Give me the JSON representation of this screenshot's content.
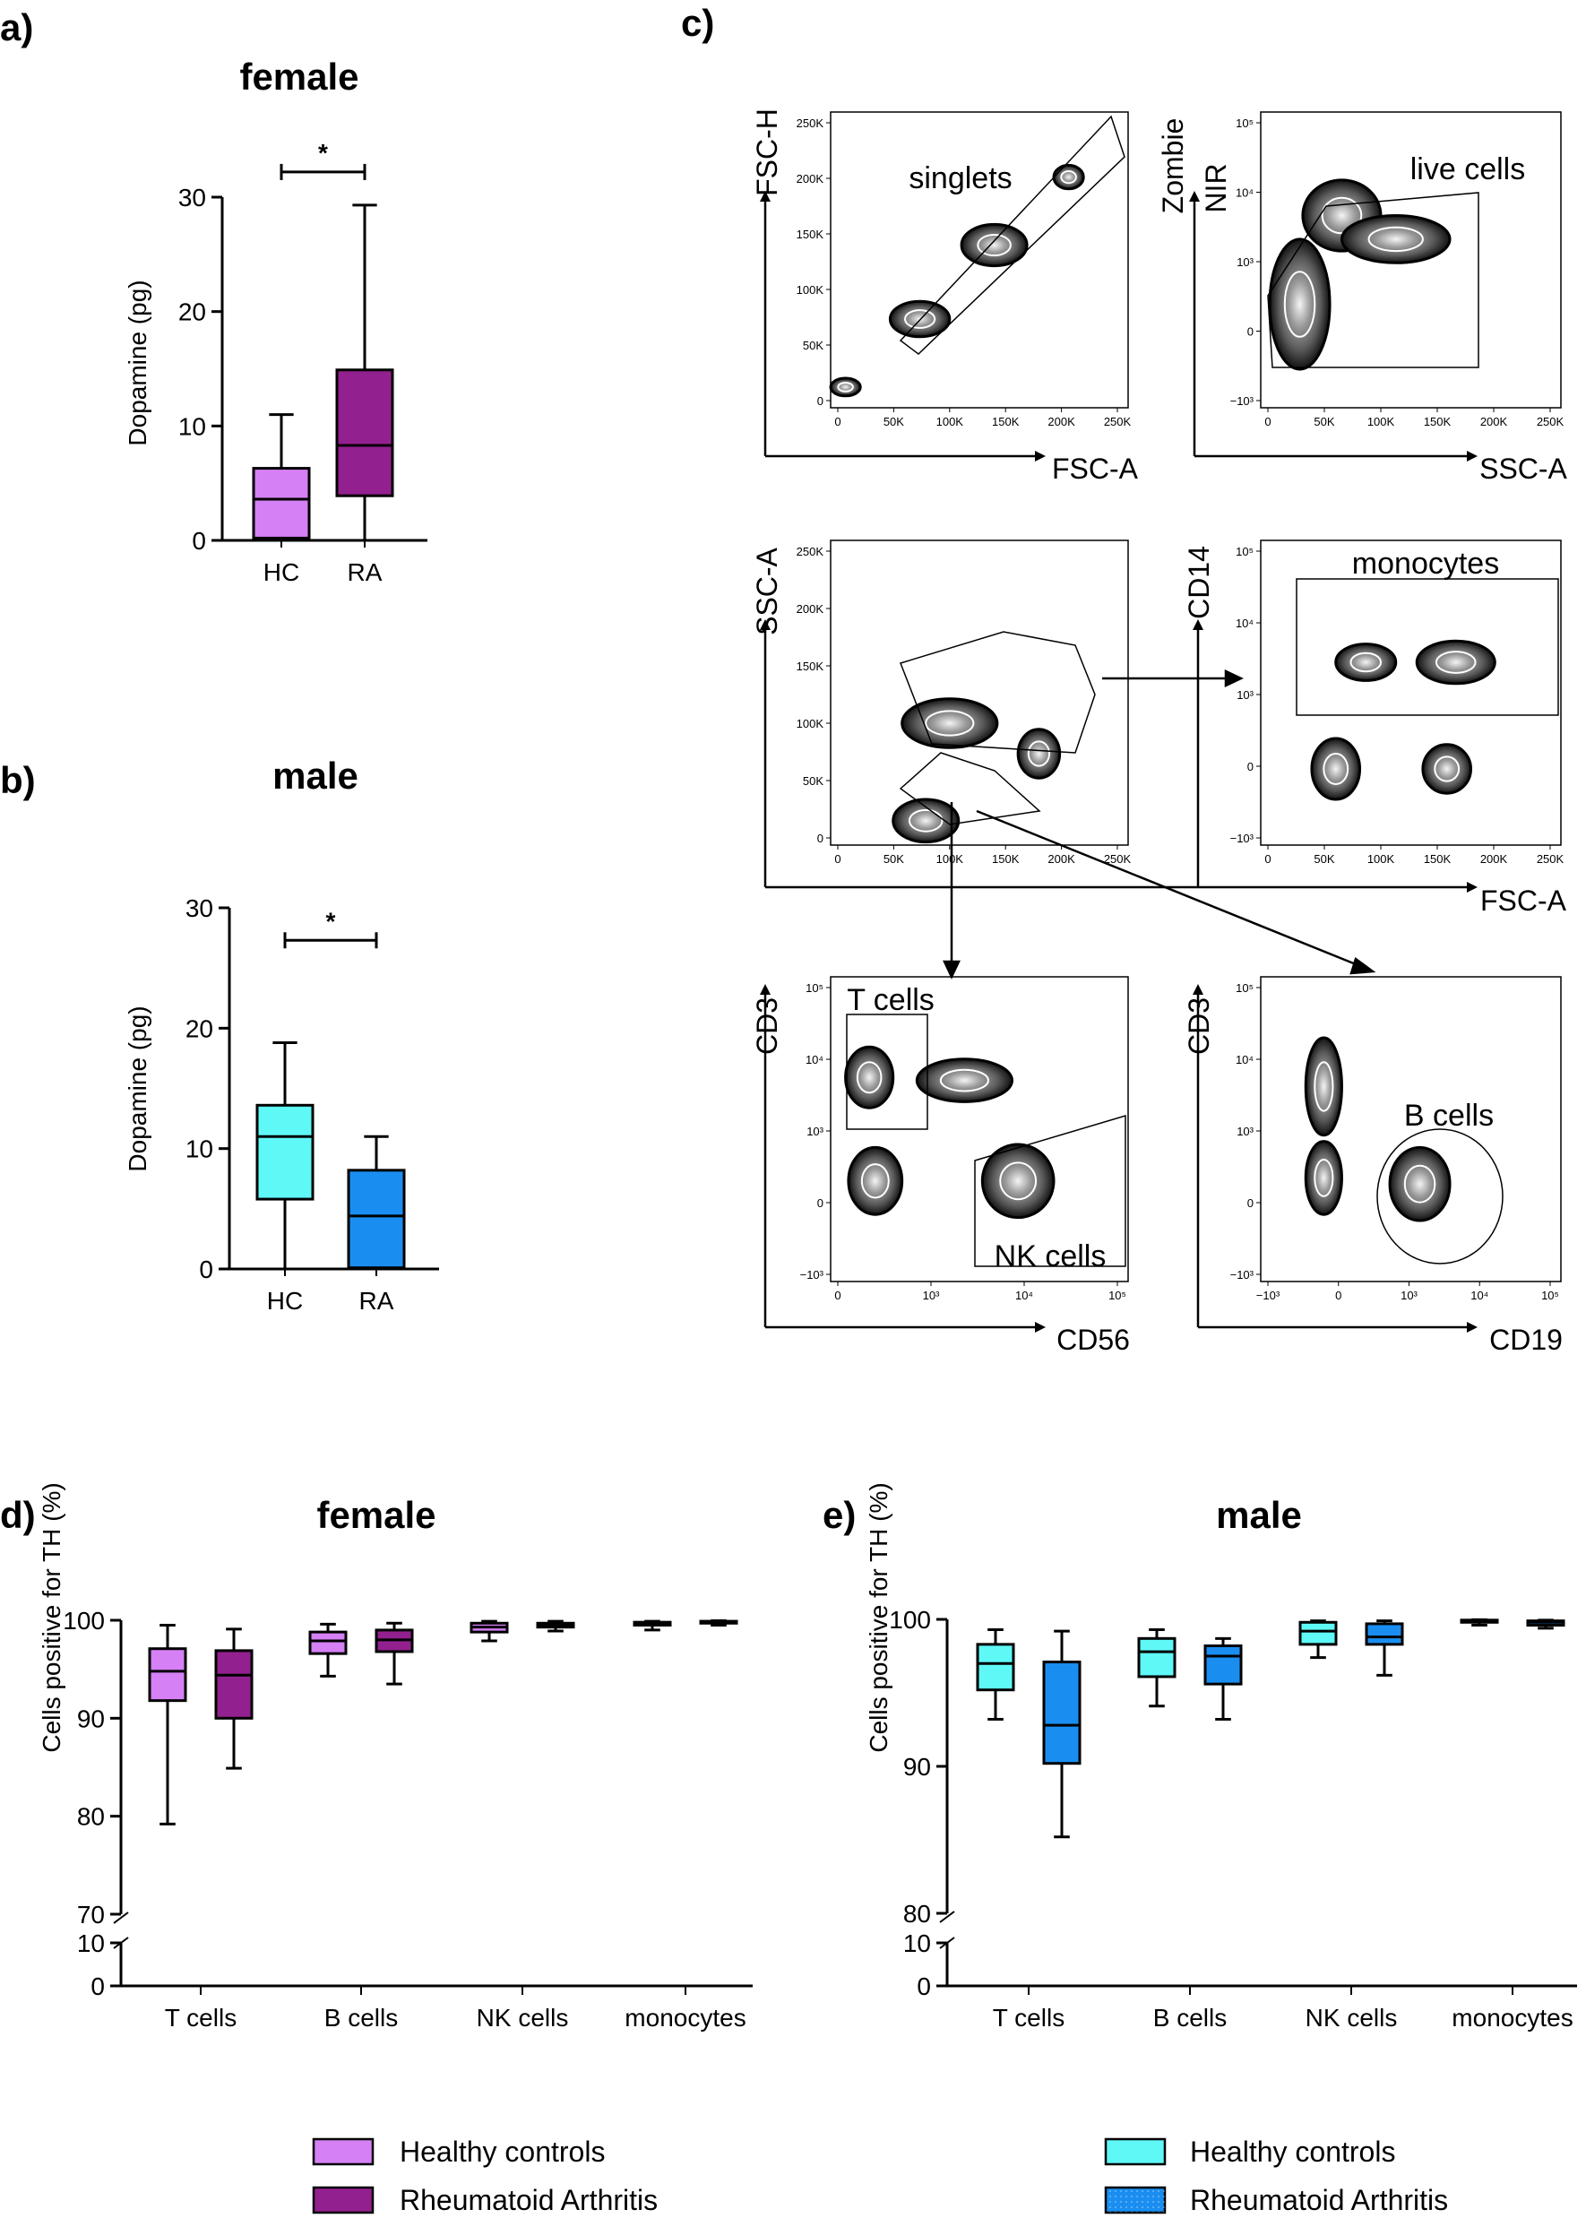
{
  "colors": {
    "female_hc": "#d580f5",
    "female_ra": "#93208f",
    "male_hc": "#5ef8f7",
    "male_ra": "#1a8ef0",
    "axis": "#000000"
  },
  "chart_data": [
    {
      "id": "a",
      "panel_letter": "a)",
      "type": "box",
      "title": "female",
      "ylabel": "Dopamine (pg)",
      "ylim": [
        0,
        30
      ],
      "yticks": [
        "0",
        "10",
        "20",
        "30"
      ],
      "categories": [
        "HC",
        "RA"
      ],
      "series": [
        {
          "category": "HC",
          "min": 0,
          "q1": 0.2,
          "median": 3.6,
          "q3": 6.3,
          "max": 11.0
        },
        {
          "category": "RA",
          "min": 0,
          "q1": 3.9,
          "median": 8.3,
          "q3": 14.9,
          "max": 29.3
        }
      ],
      "significance": {
        "from": "HC",
        "to": "RA",
        "label": "*",
        "y": 32.2
      }
    },
    {
      "id": "b",
      "panel_letter": "b)",
      "type": "box",
      "title": "male",
      "ylabel": "Dopamine (pg)",
      "ylim": [
        0,
        30
      ],
      "yticks": [
        "0",
        "10",
        "20",
        "30"
      ],
      "categories": [
        "HC",
        "RA"
      ],
      "series": [
        {
          "category": "HC",
          "min": 0,
          "q1": 5.8,
          "median": 11.0,
          "q3": 13.6,
          "max": 18.8
        },
        {
          "category": "RA",
          "min": 0,
          "q1": 0.1,
          "median": 4.4,
          "q3": 8.2,
          "max": 11.0
        }
      ],
      "significance": {
        "from": "HC",
        "to": "RA",
        "label": "*",
        "y": 27.3
      }
    },
    {
      "id": "c",
      "panel_letter": "c)",
      "type": "gating-plots",
      "plots": [
        {
          "x_axis": "FSC-A",
          "y_axis": "FSC-H",
          "gate": "singlets",
          "xticks": [
            "0",
            "50K",
            "100K",
            "150K",
            "200K",
            "250K"
          ],
          "yticks": [
            "0",
            "50K",
            "100K",
            "150K",
            "200K",
            "250K"
          ]
        },
        {
          "x_axis": "SSC-A",
          "y_axis_lines": [
            "Zombie",
            "NIR"
          ],
          "gate": "live cells",
          "xticks": [
            "0",
            "50K",
            "100K",
            "150K",
            "200K",
            "250K"
          ],
          "yticks": [
            "−10³",
            "0",
            "10³",
            "10⁴",
            "10⁵"
          ]
        },
        {
          "x_axis": "FSC-A",
          "y_axis": "SSC-A",
          "gate": "",
          "xticks": [
            "0",
            "50K",
            "100K",
            "150K",
            "200K",
            "250K"
          ],
          "yticks": [
            "0",
            "50K",
            "100K",
            "150K",
            "200K",
            "250K"
          ]
        },
        {
          "x_axis": "",
          "y_axis": "CD14",
          "gate": "monocytes",
          "xticks": [
            "0",
            "50K",
            "100K",
            "150K",
            "200K",
            "250K"
          ],
          "yticks": [
            "−10³",
            "0",
            "10³",
            "10⁴",
            "10⁵"
          ]
        },
        {
          "x_axis": "CD56",
          "y_axis": "CD3",
          "gates": [
            "T cells",
            "NK cells"
          ],
          "xticks": [
            "0",
            "10³",
            "10⁴",
            "10⁵"
          ],
          "yticks": [
            "−10³",
            "0",
            "10³",
            "10⁴",
            "10⁵"
          ]
        },
        {
          "x_axis": "CD19",
          "y_axis": "CD3",
          "gate": "B cells",
          "xticks": [
            "−10³",
            "0",
            "10³",
            "10⁴",
            "10⁵"
          ],
          "yticks": [
            "−10³",
            "0",
            "10³",
            "10⁴",
            "10⁵"
          ]
        }
      ]
    },
    {
      "id": "d",
      "panel_letter": "d)",
      "type": "box",
      "title": "female",
      "ylabel": "Cells positive for TH (%)",
      "broken_axis": {
        "lower": [
          0,
          10
        ],
        "upper": [
          70,
          100
        ]
      },
      "yticks_upper": [
        "70",
        "80",
        "90",
        "100"
      ],
      "yticks_lower": [
        "0",
        "10"
      ],
      "categories": [
        "T cells",
        "B cells",
        "NK cells",
        "monocytes"
      ],
      "series": [
        {
          "name": "Healthy controls",
          "boxes": [
            {
              "min": 79.2,
              "q1": 91.8,
              "median": 94.8,
              "q3": 97.1,
              "max": 99.5
            },
            {
              "min": 94.3,
              "q1": 96.6,
              "median": 97.9,
              "q3": 98.8,
              "max": 99.6
            },
            {
              "min": 97.9,
              "q1": 98.8,
              "median": 99.3,
              "q3": 99.7,
              "max": 99.9
            },
            {
              "min": 99.0,
              "q1": 99.5,
              "median": 99.7,
              "q3": 99.8,
              "max": 99.9
            }
          ]
        },
        {
          "name": "Rheumatoid Arthritis",
          "boxes": [
            {
              "min": 84.9,
              "q1": 90.0,
              "median": 94.4,
              "q3": 96.9,
              "max": 99.1
            },
            {
              "min": 93.5,
              "q1": 96.8,
              "median": 98.0,
              "q3": 99.0,
              "max": 99.7
            },
            {
              "min": 98.9,
              "q1": 99.3,
              "median": 99.5,
              "q3": 99.7,
              "max": 99.9
            },
            {
              "min": 99.5,
              "q1": 99.7,
              "median": 99.8,
              "q3": 99.9,
              "max": 99.95
            }
          ]
        }
      ]
    },
    {
      "id": "e",
      "panel_letter": "e)",
      "type": "box",
      "title": "male",
      "ylabel": "Cells positive for TH (%)",
      "broken_axis": {
        "lower": [
          0,
          10
        ],
        "upper": [
          80,
          100
        ]
      },
      "yticks_upper": [
        "80",
        "90",
        "100"
      ],
      "yticks_lower": [
        "0",
        "10"
      ],
      "categories": [
        "T cells",
        "B cells",
        "NK cells",
        "monocytes"
      ],
      "series": [
        {
          "name": "Healthy controls",
          "boxes": [
            {
              "min": 93.2,
              "q1": 95.2,
              "median": 97.0,
              "q3": 98.3,
              "max": 99.3
            },
            {
              "min": 94.1,
              "q1": 96.1,
              "median": 97.8,
              "q3": 98.7,
              "max": 99.3
            },
            {
              "min": 97.4,
              "q1": 98.3,
              "median": 99.2,
              "q3": 99.8,
              "max": 99.9
            },
            {
              "min": 99.6,
              "q1": 99.8,
              "median": 99.9,
              "q3": 99.95,
              "max": 99.98
            }
          ]
        },
        {
          "name": "Rheumatoid Arthritis",
          "boxes": [
            {
              "min": 85.2,
              "q1": 90.2,
              "median": 92.8,
              "q3": 97.1,
              "max": 99.2
            },
            {
              "min": 93.2,
              "q1": 95.6,
              "median": 97.5,
              "q3": 98.2,
              "max": 98.7
            },
            {
              "min": 96.2,
              "q1": 98.3,
              "median": 98.8,
              "q3": 99.7,
              "max": 99.9
            },
            {
              "min": 99.4,
              "q1": 99.6,
              "median": 99.8,
              "q3": 99.9,
              "max": 99.95
            }
          ]
        }
      ]
    }
  ]
}
